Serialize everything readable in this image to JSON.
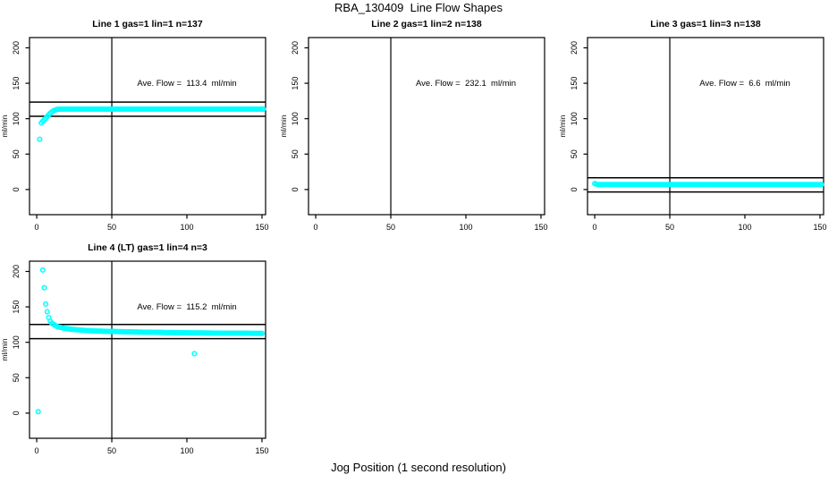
{
  "figure": {
    "title": "RBA_130409  Line Flow Shapes",
    "xlabel": "Jog Position (1 second resolution)",
    "colors": {
      "points": "#00FFFF",
      "axis": "#000000",
      "background": "#FFFFFF"
    }
  },
  "chart_data": [
    {
      "type": "scatter",
      "title": "Line 1 gas=1 lin=1 n=137",
      "line": 1,
      "gas": 1,
      "lin": 1,
      "n": 137,
      "annotation": "Ave. Flow =  113.4  ml/min",
      "ave_flow_ml_min": 113.4,
      "annotation_xy": [
        100,
        150
      ],
      "ylabel": "ml/min",
      "x_ticks": [
        0,
        50,
        100,
        150
      ],
      "y_ticks": [
        0,
        50,
        100,
        150,
        200
      ],
      "x_range": [
        -4.8,
        152.4
      ],
      "y_range": [
        -35.5,
        214.5
      ],
      "vline_x": 50,
      "hlines": [
        103.4,
        123.4
      ],
      "points": [
        [
          2,
          71
        ],
        [
          3,
          94
        ],
        [
          4,
          96.5
        ],
        [
          5,
          98.5
        ],
        [
          6,
          100.5
        ],
        [
          7,
          103
        ],
        [
          8,
          105.5
        ],
        [
          9,
          107.5
        ],
        [
          10,
          109.5
        ],
        [
          11,
          111
        ],
        [
          12,
          112
        ],
        [
          13,
          112.7
        ],
        [
          14,
          113.2
        ]
      ],
      "runs": [
        {
          "x_from": 15,
          "x_to": 151,
          "step": 1,
          "y": 113.5
        }
      ],
      "series": null
    },
    {
      "type": "scatter",
      "title": "Line 2 gas=1 lin=2 n=138",
      "line": 2,
      "gas": 1,
      "lin": 2,
      "n": 138,
      "annotation": "Ave. Flow =  232.1  ml/min",
      "ave_flow_ml_min": 232.1,
      "annotation_xy": [
        100,
        150
      ],
      "ylabel": "ml/min",
      "x_ticks": [
        0,
        50,
        100,
        150
      ],
      "y_ticks": [
        0,
        50,
        100,
        150,
        200
      ],
      "x_range": [
        -4.8,
        152.4
      ],
      "y_range": [
        -35.5,
        214.5
      ],
      "vline_x": 50,
      "hlines": [
        222.1,
        242.1
      ],
      "points": [],
      "runs": [],
      "series": null,
      "note": "all data points above y-range (off scale), nothing plotted"
    },
    {
      "type": "scatter",
      "title": "Line 3 gas=1 lin=3 n=138",
      "line": 3,
      "gas": 1,
      "lin": 3,
      "n": 138,
      "annotation": "Ave. Flow =  6.6  ml/min",
      "ave_flow_ml_min": 6.6,
      "annotation_xy": [
        100,
        150
      ],
      "ylabel": "ml/min",
      "x_ticks": [
        0,
        50,
        100,
        150
      ],
      "y_ticks": [
        0,
        50,
        100,
        150,
        200
      ],
      "x_range": [
        -4.8,
        152.4
      ],
      "y_range": [
        -35.5,
        214.5
      ],
      "vline_x": 50,
      "hlines": [
        -3.4,
        16.6
      ],
      "points": [
        [
          0,
          8.5
        ],
        [
          1,
          7.5
        ]
      ],
      "runs": [
        {
          "x_from": 2,
          "x_to": 151,
          "step": 1,
          "y": 7
        }
      ],
      "series": null
    },
    {
      "type": "scatter",
      "title": "Line 4 (LT) gas=1 lin=4 n=3",
      "line": 4,
      "gas": 1,
      "lin": 4,
      "n": 3,
      "annotation": "Ave. Flow =  115.2  ml/min",
      "ave_flow_ml_min": 115.2,
      "annotation_xy": [
        100,
        150
      ],
      "ylabel": "ml/min",
      "x_ticks": [
        0,
        50,
        100,
        150
      ],
      "y_ticks": [
        0,
        50,
        100,
        150,
        200
      ],
      "x_range": [
        -4.8,
        152.4
      ],
      "y_range": [
        -35.5,
        214.5
      ],
      "vline_x": 50,
      "hlines": [
        105.2,
        125.2
      ],
      "points": [
        [
          1,
          2
        ],
        [
          4,
          202
        ],
        [
          5,
          177
        ],
        [
          6,
          154
        ],
        [
          7,
          143
        ],
        [
          8,
          135
        ],
        [
          9,
          130
        ],
        [
          10,
          127
        ],
        [
          11,
          125.5
        ],
        [
          12,
          124.5
        ],
        [
          105,
          84
        ]
      ],
      "runs": [],
      "series": {
        "x_start": 13,
        "step": 1,
        "values": [
          122.7,
          122.0,
          121.4,
          120.9,
          120.4,
          120.0,
          119.6,
          119.3,
          119.0,
          118.7,
          118.4,
          118.2,
          118.0,
          117.8,
          117.6,
          117.4,
          117.2,
          117.0,
          116.9,
          116.8,
          116.6,
          116.5,
          116.4,
          116.3,
          116.2,
          116.1,
          116.0,
          115.9,
          115.8,
          115.7,
          115.7,
          115.6,
          115.5,
          115.5,
          115.4,
          115.4,
          115.3,
          115.3,
          115.2,
          115.2,
          115.1,
          115.1,
          115.0,
          115.0,
          114.9,
          114.9,
          114.8,
          114.8,
          114.7,
          114.7,
          114.6,
          114.6,
          114.5,
          114.5,
          114.5,
          114.4,
          114.4,
          114.4,
          114.3,
          114.3,
          114.3,
          114.2,
          114.2,
          114.2,
          114.1,
          114.1,
          114.1,
          114.0,
          114.0,
          114.0,
          113.9,
          113.9,
          113.9,
          113.8,
          113.8,
          113.8,
          113.7,
          113.7,
          113.7,
          113.6,
          113.6,
          113.6,
          113.5,
          113.5,
          113.5,
          113.5,
          113.4,
          113.4,
          113.4,
          113.4,
          113.3,
          113.3,
          113.3,
          113.3,
          113.2,
          113.2,
          113.2,
          113.2,
          113.2,
          113.1,
          113.1,
          113.1,
          113.1,
          113.1,
          113.0,
          113.0,
          113.0,
          113.0,
          113.0,
          113.0,
          112.9,
          112.9,
          112.9,
          112.9,
          112.9,
          112.9,
          112.8,
          112.8,
          112.8,
          112.8,
          112.8,
          112.8,
          112.8,
          112.7,
          112.7,
          112.7,
          112.7,
          112.7,
          112.7,
          112.7,
          112.6,
          112.6,
          112.6,
          112.6,
          112.6,
          112.6,
          112.6,
          112.5
        ]
      }
    }
  ],
  "layout": {
    "grid": {
      "cols": 3,
      "rows": 2
    },
    "subplot_order": [
      "row1-col1",
      "row1-col2",
      "row1-col3",
      "row2-col1"
    ],
    "empty_cells": [
      "row2-col2",
      "row2-col3"
    ]
  }
}
